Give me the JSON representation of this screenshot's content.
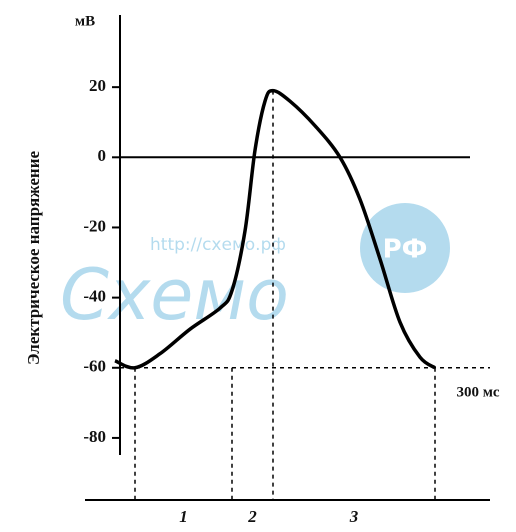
{
  "chart_data": {
    "type": "line",
    "y_label": "Электрическое напряжение",
    "y_unit": "мВ",
    "x_note": "300 мс",
    "x": [
      -20,
      0,
      25,
      55,
      85,
      97,
      110,
      120,
      130,
      138,
      155,
      180,
      205,
      225,
      245,
      265,
      285,
      300
    ],
    "values": [
      -58,
      -60,
      -56,
      -49,
      -43,
      -38,
      -21,
      2,
      16,
      19,
      16,
      9,
      0,
      -12,
      -29,
      -47,
      -57,
      -60
    ],
    "color": "#000000",
    "xlim": [
      -20,
      380
    ],
    "ylim": [
      -90,
      40
    ],
    "yticks": [
      20,
      0,
      -20,
      -40,
      -60,
      -80
    ],
    "zero_line": 0,
    "rest_line": -60,
    "phase_bounds": [
      0,
      97,
      138,
      300
    ],
    "phases": [
      "1",
      "2",
      "3"
    ],
    "watermark": {
      "url": "http://схемо.рф",
      "name": "Схемо",
      "badge": "РФ"
    }
  }
}
